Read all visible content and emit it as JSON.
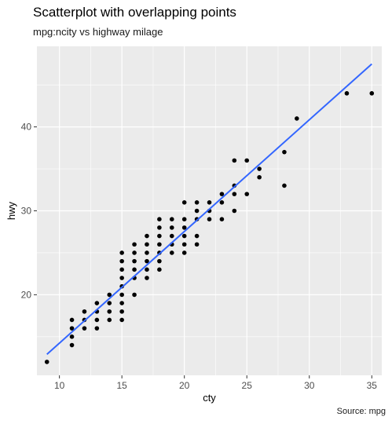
{
  "chart_data": {
    "type": "scatter",
    "title": "Scatterplot with overlapping points",
    "subtitle": "mpg:ncity vs highway milage",
    "caption": "Source: mpg",
    "xlabel": "cty",
    "ylabel": "hwy",
    "xlim": [
      8.2,
      35.8
    ],
    "ylim": [
      10.4,
      49.6
    ],
    "xticks": [
      10,
      15,
      20,
      25,
      30,
      35
    ],
    "yticks": [
      20,
      30,
      40
    ],
    "grid": true,
    "panel_color": "#ebebeb",
    "grid_color": "#ffffff",
    "point_color": "#000000",
    "fit_color": "#3366ff",
    "fit_line": {
      "method": "linear",
      "x": [
        9,
        35
      ],
      "y": [
        12.9,
        47.5
      ]
    },
    "points": [
      [
        9,
        12
      ],
      [
        11,
        14
      ],
      [
        11,
        15
      ],
      [
        11,
        16
      ],
      [
        11,
        17
      ],
      [
        12,
        16
      ],
      [
        12,
        17
      ],
      [
        12,
        18
      ],
      [
        13,
        16
      ],
      [
        13,
        17
      ],
      [
        13,
        18
      ],
      [
        13,
        19
      ],
      [
        14,
        17
      ],
      [
        14,
        18
      ],
      [
        14,
        19
      ],
      [
        14,
        20
      ],
      [
        15,
        17
      ],
      [
        15,
        18
      ],
      [
        15,
        19
      ],
      [
        15,
        20
      ],
      [
        15,
        21
      ],
      [
        15,
        22
      ],
      [
        15,
        23
      ],
      [
        15,
        24
      ],
      [
        15,
        25
      ],
      [
        16,
        20
      ],
      [
        16,
        22
      ],
      [
        16,
        23
      ],
      [
        16,
        24
      ],
      [
        16,
        25
      ],
      [
        16,
        26
      ],
      [
        17,
        22
      ],
      [
        17,
        23
      ],
      [
        17,
        24
      ],
      [
        17,
        25
      ],
      [
        17,
        26
      ],
      [
        17,
        27
      ],
      [
        18,
        23
      ],
      [
        18,
        24
      ],
      [
        18,
        25
      ],
      [
        18,
        26
      ],
      [
        18,
        27
      ],
      [
        18,
        28
      ],
      [
        18,
        29
      ],
      [
        19,
        25
      ],
      [
        19,
        26
      ],
      [
        19,
        27
      ],
      [
        19,
        28
      ],
      [
        19,
        29
      ],
      [
        20,
        25
      ],
      [
        20,
        26
      ],
      [
        20,
        27
      ],
      [
        20,
        28
      ],
      [
        20,
        29
      ],
      [
        20,
        31
      ],
      [
        21,
        26
      ],
      [
        21,
        27
      ],
      [
        21,
        29
      ],
      [
        21,
        30
      ],
      [
        21,
        31
      ],
      [
        22,
        29
      ],
      [
        22,
        30
      ],
      [
        22,
        31
      ],
      [
        23,
        29
      ],
      [
        23,
        31
      ],
      [
        23,
        32
      ],
      [
        24,
        30
      ],
      [
        24,
        32
      ],
      [
        24,
        33
      ],
      [
        24,
        36
      ],
      [
        25,
        32
      ],
      [
        25,
        36
      ],
      [
        26,
        34
      ],
      [
        26,
        35
      ],
      [
        28,
        33
      ],
      [
        28,
        37
      ],
      [
        29,
        41
      ],
      [
        33,
        44
      ],
      [
        35,
        44
      ]
    ]
  }
}
